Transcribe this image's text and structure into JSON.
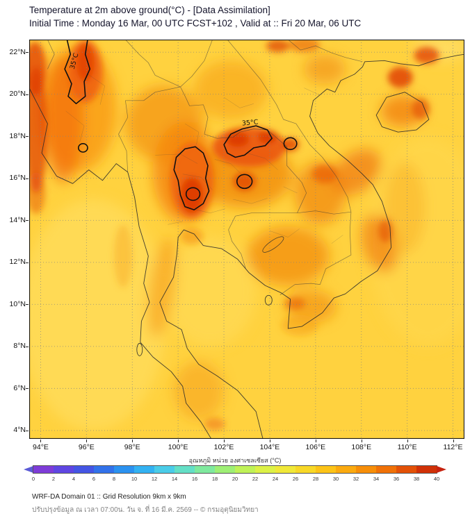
{
  "header": {
    "title": "Temperature at 2m above ground(°C) - [Data Assimilation]",
    "subtitle": "Initial Time : Monday 16 Mar, 00 UTC FCST+102 , Valid at :: Fri 20 Mar, 06 UTC"
  },
  "map": {
    "lat_labels": [
      "22°N",
      "20°N",
      "18°N",
      "16°N",
      "14°N",
      "12°N",
      "10°N",
      "8°N",
      "6°N",
      "4°N"
    ],
    "lon_labels": [
      "94°E",
      "96°E",
      "98°E",
      "100°E",
      "102°E",
      "104°E",
      "106°E",
      "108°E",
      "110°E",
      "112°E"
    ],
    "contour_labels": [
      "35°C",
      "35°C"
    ]
  },
  "colorbar": {
    "label": "อุณหภูมิ หน่วย องศาเซลเซียส (°C)",
    "tick_labels": [
      "0",
      "2",
      "4",
      "6",
      "8",
      "10",
      "12",
      "14",
      "16",
      "18",
      "20",
      "22",
      "24",
      "26",
      "28",
      "30",
      "32",
      "34",
      "36",
      "38",
      "40"
    ],
    "segment_colors": [
      "#7E3CD8",
      "#5F46E2",
      "#4455E4",
      "#3272EA",
      "#2B92F0",
      "#33B2F2",
      "#4ACCE8",
      "#64DFC6",
      "#7FE99E",
      "#9EEF75",
      "#BFF257",
      "#DCF146",
      "#F0E838",
      "#F8D827",
      "#FCC317",
      "#FBAA0F",
      "#F78E08",
      "#F07107",
      "#E35107",
      "#D03107"
    ],
    "arrow_left_color": "#5B5BD6",
    "arrow_right_color": "#C62310"
  },
  "footer": {
    "line1": "WRF-DA Domain 01 :: Grid Resolution 9km x 9km",
    "line2": "ปรับปรุงข้อมูล ณ เวลา 07:00น. วัน จ. ที่ 16 มี.ค. 2569 -- © กรมอุตุนิยมวิทยา"
  }
}
